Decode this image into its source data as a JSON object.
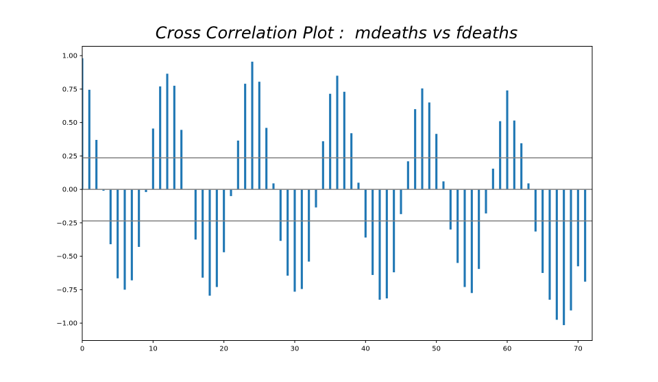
{
  "chart_data": {
    "type": "bar",
    "title": "Cross Correlation Plot :  mdeaths vs fdeaths",
    "xlabel": "",
    "ylabel": "",
    "xlim": [
      0,
      72
    ],
    "ylim": [
      -1.13,
      1.07
    ],
    "x_ticks": [
      "0",
      "10",
      "20",
      "30",
      "40",
      "50",
      "60",
      "70"
    ],
    "y_ticks": [
      "1.00",
      "0.75",
      "0.50",
      "0.25",
      "0.00",
      "−0.25",
      "−0.50",
      "−0.75",
      "−1.00"
    ],
    "confidence_band": [
      0.236,
      -0.236
    ],
    "grid": false,
    "colors": {
      "bars": "#1f77b4",
      "reference_lines": "#808080"
    },
    "series": [
      {
        "x": [
          0,
          1,
          2,
          3,
          4,
          5,
          6,
          7,
          8,
          9,
          10,
          11,
          12,
          13,
          14,
          15,
          16,
          17,
          18,
          19,
          20,
          21,
          22,
          23,
          24,
          25,
          26,
          27,
          28,
          29,
          30,
          31,
          32,
          33,
          34,
          35,
          36,
          37,
          38,
          39,
          40,
          41,
          42,
          43,
          44,
          45,
          46,
          47,
          48,
          49,
          50,
          51,
          52,
          53,
          54,
          55,
          56,
          57,
          58,
          59,
          60,
          61,
          62,
          63,
          64,
          65,
          66,
          67,
          68,
          69,
          70,
          71
        ],
        "values": [
          0.98,
          0.745,
          0.37,
          -0.01,
          -0.41,
          -0.665,
          -0.75,
          -0.68,
          -0.43,
          -0.02,
          0.455,
          0.77,
          0.865,
          0.775,
          0.445,
          0.0,
          -0.375,
          -0.66,
          -0.795,
          -0.73,
          -0.47,
          -0.05,
          0.365,
          0.79,
          0.955,
          0.805,
          0.46,
          0.045,
          -0.385,
          -0.645,
          -0.765,
          -0.745,
          -0.54,
          -0.135,
          0.36,
          0.715,
          0.85,
          0.73,
          0.42,
          0.05,
          -0.36,
          -0.64,
          -0.825,
          -0.815,
          -0.62,
          -0.185,
          0.21,
          0.6,
          0.755,
          0.65,
          0.415,
          0.06,
          -0.3,
          -0.55,
          -0.73,
          -0.775,
          -0.595,
          -0.18,
          0.155,
          0.51,
          0.74,
          0.515,
          0.345,
          0.045,
          -0.315,
          -0.625,
          -0.825,
          -0.975,
          -1.015,
          -0.905,
          -0.575,
          -0.69
        ]
      }
    ]
  }
}
